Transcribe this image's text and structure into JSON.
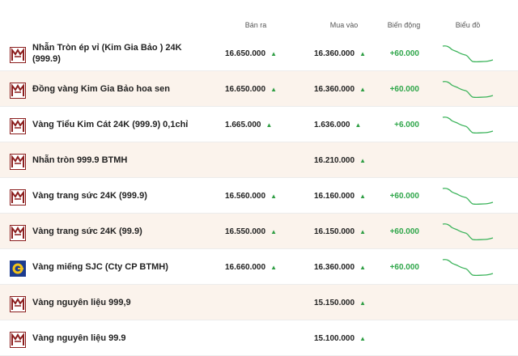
{
  "header": {
    "sell": "Bán ra",
    "buy": "Mua vào",
    "change": "Biến động",
    "chart": "Biểu đồ"
  },
  "colors": {
    "accent": "#8b1e1e",
    "up": "#2fa64a",
    "row_alt": "#fbf3ec",
    "sparkline": "#3bb35a"
  },
  "rows": [
    {
      "logo": "btmh-logo",
      "name": "Nhẫn Tròn ép vỉ (Kim Gia Bảo ) 24K (999.9)",
      "sell": "16.650.000",
      "buy": "16.360.000",
      "change": "+60.000",
      "has_chart": true
    },
    {
      "logo": "btmh-logo",
      "name": "Đồng vàng Kim Gia Bảo hoa sen",
      "sell": "16.650.000",
      "buy": "16.360.000",
      "change": "+60.000",
      "has_chart": true
    },
    {
      "logo": "btmh-logo",
      "name": "Vàng Tiểu Kim Cát 24K (999.9) 0,1chỉ",
      "sell": "1.665.000",
      "buy": "1.636.000",
      "change": "+6.000",
      "has_chart": true
    },
    {
      "logo": "btmh-logo",
      "name": "Nhẫn tròn 999.9 BTMH",
      "sell": "",
      "buy": "16.210.000",
      "change": "",
      "has_chart": false
    },
    {
      "logo": "btmh-logo",
      "name": "Vàng trang sức 24K (999.9)",
      "sell": "16.560.000",
      "buy": "16.160.000",
      "change": "+60.000",
      "has_chart": true
    },
    {
      "logo": "btmh-logo",
      "name": "Vàng trang sức 24K (99.9)",
      "sell": "16.550.000",
      "buy": "16.150.000",
      "change": "+60.000",
      "has_chart": true
    },
    {
      "logo": "sjc-logo",
      "name": "Vàng miếng SJC (Cty CP BTMH)",
      "sell": "16.660.000",
      "buy": "16.360.000",
      "change": "+60.000",
      "has_chart": true
    },
    {
      "logo": "btmh-logo",
      "name": "Vàng nguyên liệu 999,9",
      "sell": "",
      "buy": "15.150.000",
      "change": "",
      "has_chart": false
    },
    {
      "logo": "btmh-logo",
      "name": "Vàng nguyên liệu 99.9",
      "sell": "",
      "buy": "15.100.000",
      "change": "",
      "has_chart": false
    }
  ]
}
